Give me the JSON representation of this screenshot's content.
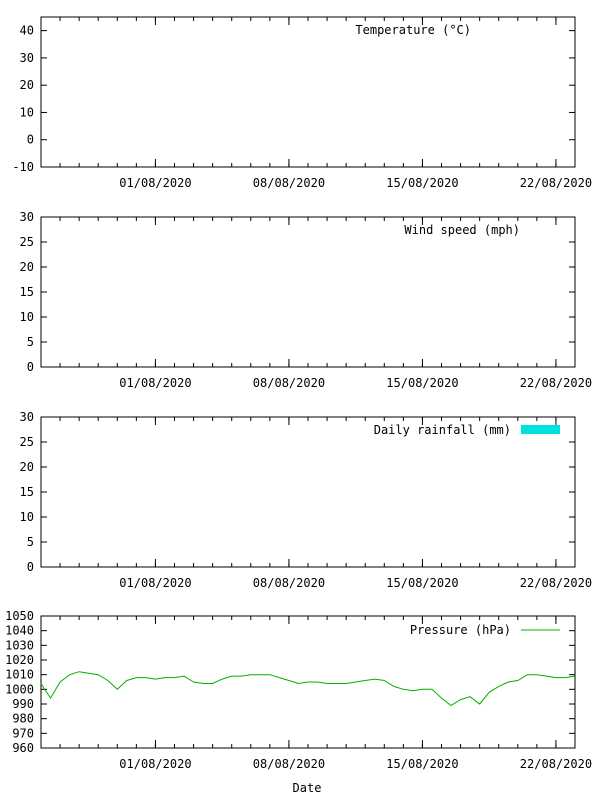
{
  "xlabel": "Date",
  "x_axis": {
    "start": "2020-07-26",
    "end": "2020-08-23",
    "tick_dates": [
      "2020-08-01",
      "2020-08-08",
      "2020-08-15",
      "2020-08-22"
    ],
    "tick_labels": [
      "01/08/2020",
      "08/08/2020",
      "15/08/2020",
      "22/08/2020"
    ]
  },
  "colors": {
    "rainfall": "#00e0e0",
    "pressure": "#00b000",
    "axes": "#000000"
  },
  "chart_data": [
    {
      "id": "temperature",
      "type": "line",
      "legend": "Temperature (°C)",
      "ylim": [
        -10,
        45
      ],
      "yticks": [
        -10,
        0,
        10,
        20,
        30,
        40
      ],
      "grid": false,
      "legend_position": "top-right",
      "series": []
    },
    {
      "id": "wind",
      "type": "line",
      "legend": "Wind speed (mph)",
      "ylim": [
        0,
        30
      ],
      "yticks": [
        0,
        5,
        10,
        15,
        20,
        25,
        30
      ],
      "grid": false,
      "legend_position": "top-right",
      "series": []
    },
    {
      "id": "rainfall",
      "type": "bar",
      "legend": "Daily rainfall (mm)",
      "ylim": [
        0,
        30
      ],
      "yticks": [
        0,
        5,
        10,
        15,
        20,
        25,
        30
      ],
      "grid": false,
      "legend_position": "top-right",
      "series": []
    },
    {
      "id": "pressure",
      "type": "line",
      "legend": "Pressure (hPa)",
      "ylim": [
        960,
        1050
      ],
      "yticks": [
        960,
        970,
        980,
        990,
        1000,
        1010,
        1020,
        1030,
        1040,
        1050
      ],
      "grid": false,
      "legend_position": "top-right",
      "series": [
        {
          "x": [
            "2020-07-26T00:00",
            "2020-07-26T12:00",
            "2020-07-27T00:00",
            "2020-07-27T12:00",
            "2020-07-28T00:00",
            "2020-07-28T12:00",
            "2020-07-29T00:00",
            "2020-07-29T12:00",
            "2020-07-30T00:00",
            "2020-07-30T12:00",
            "2020-07-31T00:00",
            "2020-07-31T12:00",
            "2020-08-01T00:00",
            "2020-08-01T12:00",
            "2020-08-02T00:00",
            "2020-08-02T12:00",
            "2020-08-03T00:00",
            "2020-08-03T12:00",
            "2020-08-04T00:00",
            "2020-08-04T12:00",
            "2020-08-05T00:00",
            "2020-08-05T12:00",
            "2020-08-06T00:00",
            "2020-08-06T12:00",
            "2020-08-07T00:00",
            "2020-08-07T12:00",
            "2020-08-08T00:00",
            "2020-08-08T12:00",
            "2020-08-09T00:00",
            "2020-08-09T12:00",
            "2020-08-10T00:00",
            "2020-08-10T12:00",
            "2020-08-11T00:00",
            "2020-08-11T12:00",
            "2020-08-12T00:00",
            "2020-08-12T12:00",
            "2020-08-13T00:00",
            "2020-08-13T12:00",
            "2020-08-14T00:00",
            "2020-08-14T12:00",
            "2020-08-15T00:00",
            "2020-08-15T12:00",
            "2020-08-16T00:00",
            "2020-08-16T12:00",
            "2020-08-17T00:00",
            "2020-08-17T12:00",
            "2020-08-18T00:00",
            "2020-08-18T12:00",
            "2020-08-19T00:00",
            "2020-08-19T12:00",
            "2020-08-20T00:00",
            "2020-08-20T12:00",
            "2020-08-21T00:00",
            "2020-08-21T12:00",
            "2020-08-22T00:00",
            "2020-08-22T12:00",
            "2020-08-23T00:00"
          ],
          "y": [
            1004,
            994,
            1005,
            1010,
            1012,
            1011,
            1010,
            1006,
            1000,
            1006,
            1008,
            1008,
            1007,
            1008,
            1008,
            1009,
            1005,
            1004,
            1004,
            1007,
            1009,
            1009,
            1010,
            1010,
            1010,
            1008,
            1006,
            1004,
            1005,
            1005,
            1004,
            1004,
            1004,
            1005,
            1006,
            1007,
            1006,
            1002,
            1000,
            999,
            1000,
            1000,
            994,
            989,
            993,
            995,
            990,
            998,
            1002,
            1005,
            1006,
            1010,
            1010,
            1009,
            1008,
            1008,
            1009
          ]
        }
      ]
    }
  ]
}
